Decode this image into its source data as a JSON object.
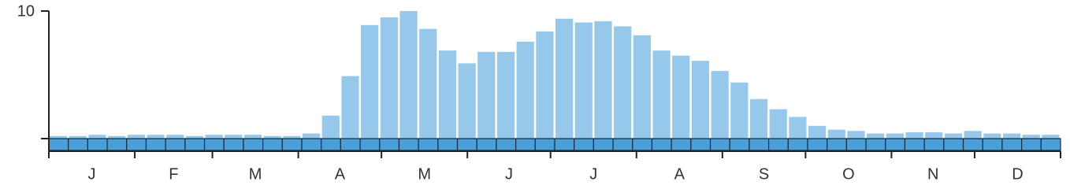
{
  "chart_data": {
    "type": "bar",
    "values": [
      0.2,
      0.2,
      0.3,
      0.2,
      0.3,
      0.3,
      0.3,
      0.2,
      0.3,
      0.3,
      0.3,
      0.2,
      0.2,
      0.4,
      1.8,
      4.9,
      8.9,
      9.5,
      10,
      8.6,
      6.9,
      5.9,
      6.8,
      6.8,
      7.6,
      8.4,
      9.4,
      9.1,
      9.2,
      8.8,
      8.1,
      6.9,
      6.5,
      6.1,
      5.3,
      4.4,
      3.1,
      2.3,
      1.7,
      1.0,
      0.7,
      0.6,
      0.4,
      0.4,
      0.5,
      0.5,
      0.4,
      0.6,
      0.4,
      0.4,
      0.3,
      0.3
    ],
    "color": "#95c8ea",
    "ylim": [
      0,
      10
    ],
    "yticks": [
      10
    ],
    "months": [
      "J",
      "F",
      "M",
      "A",
      "M",
      "J",
      "J",
      "A",
      "S",
      "O",
      "N",
      "D"
    ]
  }
}
